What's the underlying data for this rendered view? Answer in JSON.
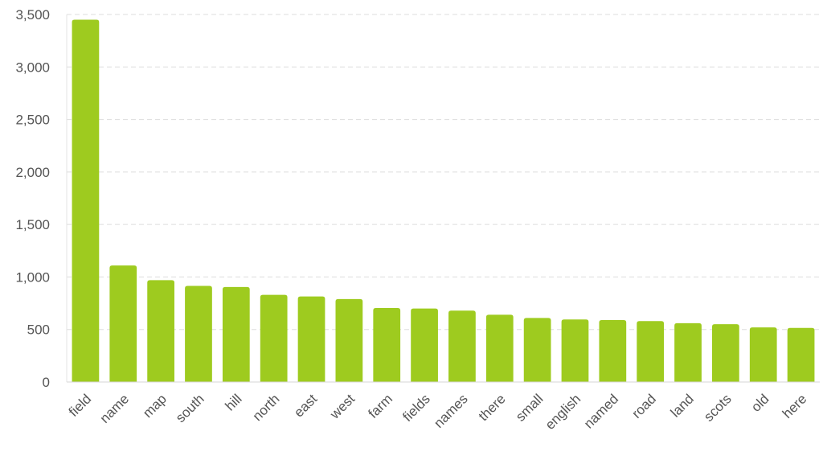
{
  "chart_data": {
    "type": "bar",
    "title": "",
    "xlabel": "",
    "ylabel": "",
    "ylim": [
      0,
      3500
    ],
    "yticks": [
      0,
      500,
      1000,
      1500,
      2000,
      2500,
      3000,
      3500
    ],
    "ytick_labels": [
      "0",
      "500",
      "1,000",
      "1,500",
      "2,000",
      "2,500",
      "3,000",
      "3,500"
    ],
    "grid": true,
    "grid_style": "dashed",
    "bar_color": "#9ecb1f",
    "categories": [
      "field",
      "name",
      "map",
      "south",
      "hill",
      "north",
      "east",
      "west",
      "farm",
      "fields",
      "names",
      "there",
      "small",
      "english",
      "named",
      "road",
      "land",
      "scots",
      "old",
      "here"
    ],
    "values": [
      3450,
      1110,
      970,
      915,
      905,
      830,
      815,
      790,
      705,
      700,
      680,
      640,
      610,
      595,
      590,
      580,
      560,
      550,
      520,
      515
    ]
  }
}
